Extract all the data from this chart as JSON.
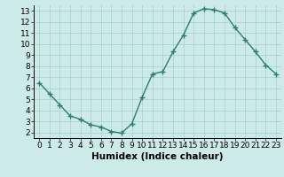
{
  "x": [
    0,
    1,
    2,
    3,
    4,
    5,
    6,
    7,
    8,
    9,
    10,
    11,
    12,
    13,
    14,
    15,
    16,
    17,
    18,
    19,
    20,
    21,
    22,
    23
  ],
  "y": [
    6.5,
    5.5,
    4.5,
    3.5,
    3.2,
    2.7,
    2.5,
    2.1,
    1.95,
    2.8,
    5.2,
    7.3,
    7.5,
    9.3,
    10.8,
    12.8,
    13.2,
    13.1,
    12.8,
    11.5,
    10.4,
    9.3,
    8.1,
    7.3
  ],
  "line_color": "#2d7d6e",
  "marker": "+",
  "marker_size": 4,
  "marker_lw": 1.0,
  "line_width": 1.0,
  "bg_color": "#cceae8",
  "grid_color": "#aad4d1",
  "xlabel": "Humidex (Indice chaleur)",
  "xlabel_fontsize": 7.5,
  "tick_fontsize": 6.5,
  "ylim": [
    1.5,
    13.5
  ],
  "xlim": [
    -0.5,
    23.5
  ],
  "yticks": [
    2,
    3,
    4,
    5,
    6,
    7,
    8,
    9,
    10,
    11,
    12,
    13
  ],
  "xticks": [
    0,
    1,
    2,
    3,
    4,
    5,
    6,
    7,
    8,
    9,
    10,
    11,
    12,
    13,
    14,
    15,
    16,
    17,
    18,
    19,
    20,
    21,
    22,
    23
  ]
}
